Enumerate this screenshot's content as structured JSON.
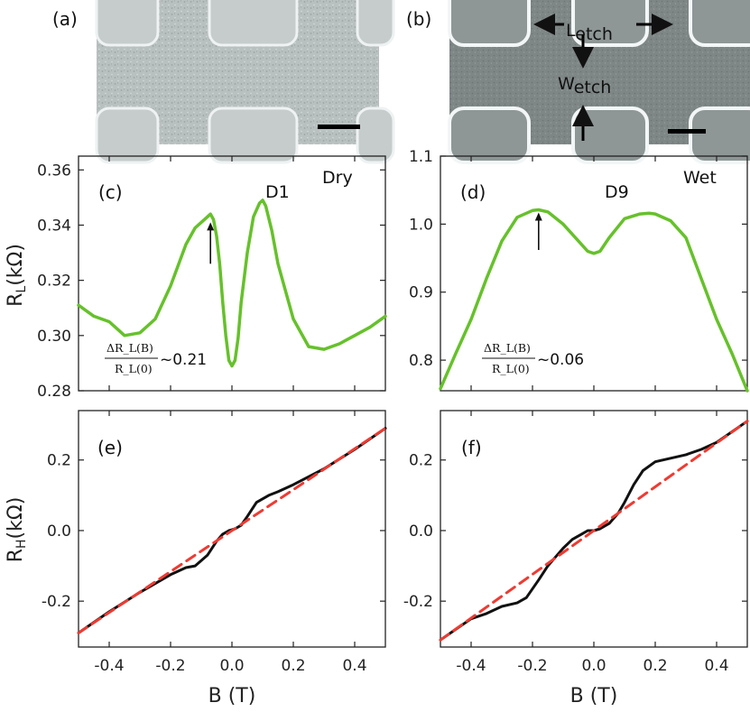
{
  "sem": {
    "a": {
      "label": "(a)"
    },
    "b": {
      "label": "(b)",
      "l_main": "L",
      "l_sub": "etch",
      "w_main": "W",
      "w_sub": "etch"
    }
  },
  "axes_labels": {
    "rl_main": "R",
    "rl_sub": "L",
    "rl_unit": "(kΩ)",
    "rh_main": "R",
    "rh_sub": "H",
    "rh_unit": "(kΩ)",
    "b_left": "B (T)",
    "b_right": "B (T)"
  },
  "annotations": {
    "c": {
      "label": "(c)",
      "device": "D1",
      "condition": "Dry",
      "frac_num": "ΔR_L(B)",
      "frac_den": "R_L(0)",
      "ratio": "~0.21"
    },
    "d": {
      "label": "(d)",
      "device": "D9",
      "condition": "Wet",
      "frac_num": "ΔR_L(B)",
      "frac_den": "R_L(0)",
      "ratio": "~0.06"
    },
    "e": {
      "label": "(e)"
    },
    "f": {
      "label": "(f)"
    }
  },
  "colors": {
    "rl_curve": "#66c12b",
    "rh_curve": "#111111",
    "fit_line": "#ee3b33"
  },
  "chart_data": [
    {
      "id": "c",
      "type": "line",
      "title": "(c) D1 Dry",
      "xlabel": "",
      "ylabel": "R_L (kΩ)",
      "xlim": [
        -0.5,
        0.5
      ],
      "ylim": [
        0.28,
        0.365
      ],
      "yticks": [
        0.28,
        0.3,
        0.32,
        0.34,
        0.36
      ],
      "yticklabels": [
        "0.28",
        "0.30",
        "0.32",
        "0.34",
        "0.36"
      ],
      "series": [
        {
          "name": "R_L",
          "x": [
            -0.5,
            -0.45,
            -0.4,
            -0.35,
            -0.3,
            -0.25,
            -0.2,
            -0.15,
            -0.12,
            -0.1,
            -0.08,
            -0.07,
            -0.06,
            -0.05,
            -0.04,
            -0.03,
            -0.02,
            -0.01,
            0,
            0.01,
            0.02,
            0.03,
            0.05,
            0.07,
            0.09,
            0.1,
            0.11,
            0.13,
            0.15,
            0.2,
            0.25,
            0.3,
            0.35,
            0.4,
            0.45,
            0.5
          ],
          "y": [
            0.311,
            0.307,
            0.305,
            0.3,
            0.301,
            0.306,
            0.318,
            0.333,
            0.339,
            0.341,
            0.343,
            0.344,
            0.342,
            0.336,
            0.326,
            0.312,
            0.3,
            0.291,
            0.289,
            0.291,
            0.299,
            0.312,
            0.33,
            0.343,
            0.348,
            0.349,
            0.347,
            0.338,
            0.326,
            0.306,
            0.296,
            0.295,
            0.297,
            0.3,
            0.303,
            0.307
          ]
        }
      ],
      "annotation_arrow": {
        "x": -0.07,
        "y_from": 0.326,
        "y_to": 0.341
      }
    },
    {
      "id": "d",
      "type": "line",
      "title": "(d) D9 Wet",
      "xlabel": "",
      "ylabel": "",
      "xlim": [
        -0.5,
        0.5
      ],
      "ylim": [
        0.755,
        1.1
      ],
      "yticks": [
        0.8,
        0.9,
        1.0,
        1.1
      ],
      "yticklabels": [
        "0.8",
        "0.9",
        "1.0",
        "1.1"
      ],
      "series": [
        {
          "name": "R_L",
          "x": [
            -0.5,
            -0.45,
            -0.4,
            -0.35,
            -0.3,
            -0.25,
            -0.2,
            -0.18,
            -0.15,
            -0.1,
            -0.05,
            -0.02,
            0,
            0.02,
            0.05,
            0.1,
            0.15,
            0.18,
            0.2,
            0.25,
            0.3,
            0.35,
            0.4,
            0.45,
            0.5
          ],
          "y": [
            0.758,
            0.81,
            0.86,
            0.92,
            0.975,
            1.01,
            1.02,
            1.021,
            1.018,
            1.0,
            0.975,
            0.96,
            0.957,
            0.96,
            0.98,
            1.008,
            1.015,
            1.016,
            1.015,
            1.005,
            0.98,
            0.92,
            0.86,
            0.81,
            0.755
          ]
        }
      ],
      "annotation_arrow": {
        "x": -0.18,
        "y_from": 0.962,
        "y_to": 1.017
      }
    },
    {
      "id": "e",
      "type": "line",
      "title": "(e)",
      "xlabel": "B (T)",
      "ylabel": "R_H (kΩ)",
      "xlim": [
        -0.5,
        0.5
      ],
      "ylim": [
        -0.33,
        0.34
      ],
      "xticks": [
        -0.4,
        -0.2,
        0.0,
        0.2,
        0.4
      ],
      "xticklabels": [
        "-0.4",
        "-0.2",
        "0.0",
        "0.2",
        "0.4"
      ],
      "yticks": [
        -0.2,
        0.0,
        0.2
      ],
      "yticklabels": [
        "-0.2",
        "0.0",
        "0.2"
      ],
      "series": [
        {
          "name": "R_H data",
          "x": [
            -0.5,
            -0.4,
            -0.3,
            -0.2,
            -0.15,
            -0.12,
            -0.08,
            -0.05,
            -0.03,
            -0.01,
            0.01,
            0.03,
            0.05,
            0.08,
            0.12,
            0.15,
            0.2,
            0.3,
            0.4,
            0.5
          ],
          "y": [
            -0.29,
            -0.23,
            -0.175,
            -0.125,
            -0.105,
            -0.1,
            -0.07,
            -0.03,
            -0.01,
            0.0,
            0.005,
            0.015,
            0.04,
            0.08,
            0.1,
            0.11,
            0.13,
            0.175,
            0.23,
            0.29
          ]
        },
        {
          "name": "linear fit",
          "dashed": true,
          "x": [
            -0.5,
            0.5
          ],
          "y": [
            -0.29,
            0.29
          ]
        }
      ]
    },
    {
      "id": "f",
      "type": "line",
      "title": "(f)",
      "xlabel": "B (T)",
      "ylabel": "",
      "xlim": [
        -0.5,
        0.5
      ],
      "ylim": [
        -0.33,
        0.34
      ],
      "xticks": [
        -0.4,
        -0.2,
        0.0,
        0.2,
        0.4
      ],
      "xticklabels": [
        "-0.4",
        "-0.2",
        "0.0",
        "0.2",
        "0.4"
      ],
      "yticks": [
        -0.2,
        0.0,
        0.2
      ],
      "yticklabels": [
        "-0.2",
        "0.0",
        "0.2"
      ],
      "series": [
        {
          "name": "R_H data",
          "x": [
            -0.5,
            -0.45,
            -0.4,
            -0.35,
            -0.3,
            -0.25,
            -0.22,
            -0.18,
            -0.15,
            -0.12,
            -0.1,
            -0.07,
            -0.04,
            -0.02,
            0,
            0.02,
            0.05,
            0.08,
            0.1,
            0.13,
            0.16,
            0.2,
            0.25,
            0.3,
            0.35,
            0.4,
            0.45,
            0.5
          ],
          "y": [
            -0.31,
            -0.28,
            -0.25,
            -0.235,
            -0.215,
            -0.205,
            -0.19,
            -0.14,
            -0.1,
            -0.07,
            -0.05,
            -0.025,
            -0.01,
            0.0,
            0.0,
            0.005,
            0.02,
            0.05,
            0.08,
            0.13,
            0.17,
            0.195,
            0.205,
            0.215,
            0.23,
            0.25,
            0.28,
            0.31
          ]
        },
        {
          "name": "linear fit",
          "dashed": true,
          "x": [
            -0.5,
            0.5
          ],
          "y": [
            -0.31,
            0.31
          ]
        }
      ]
    }
  ]
}
